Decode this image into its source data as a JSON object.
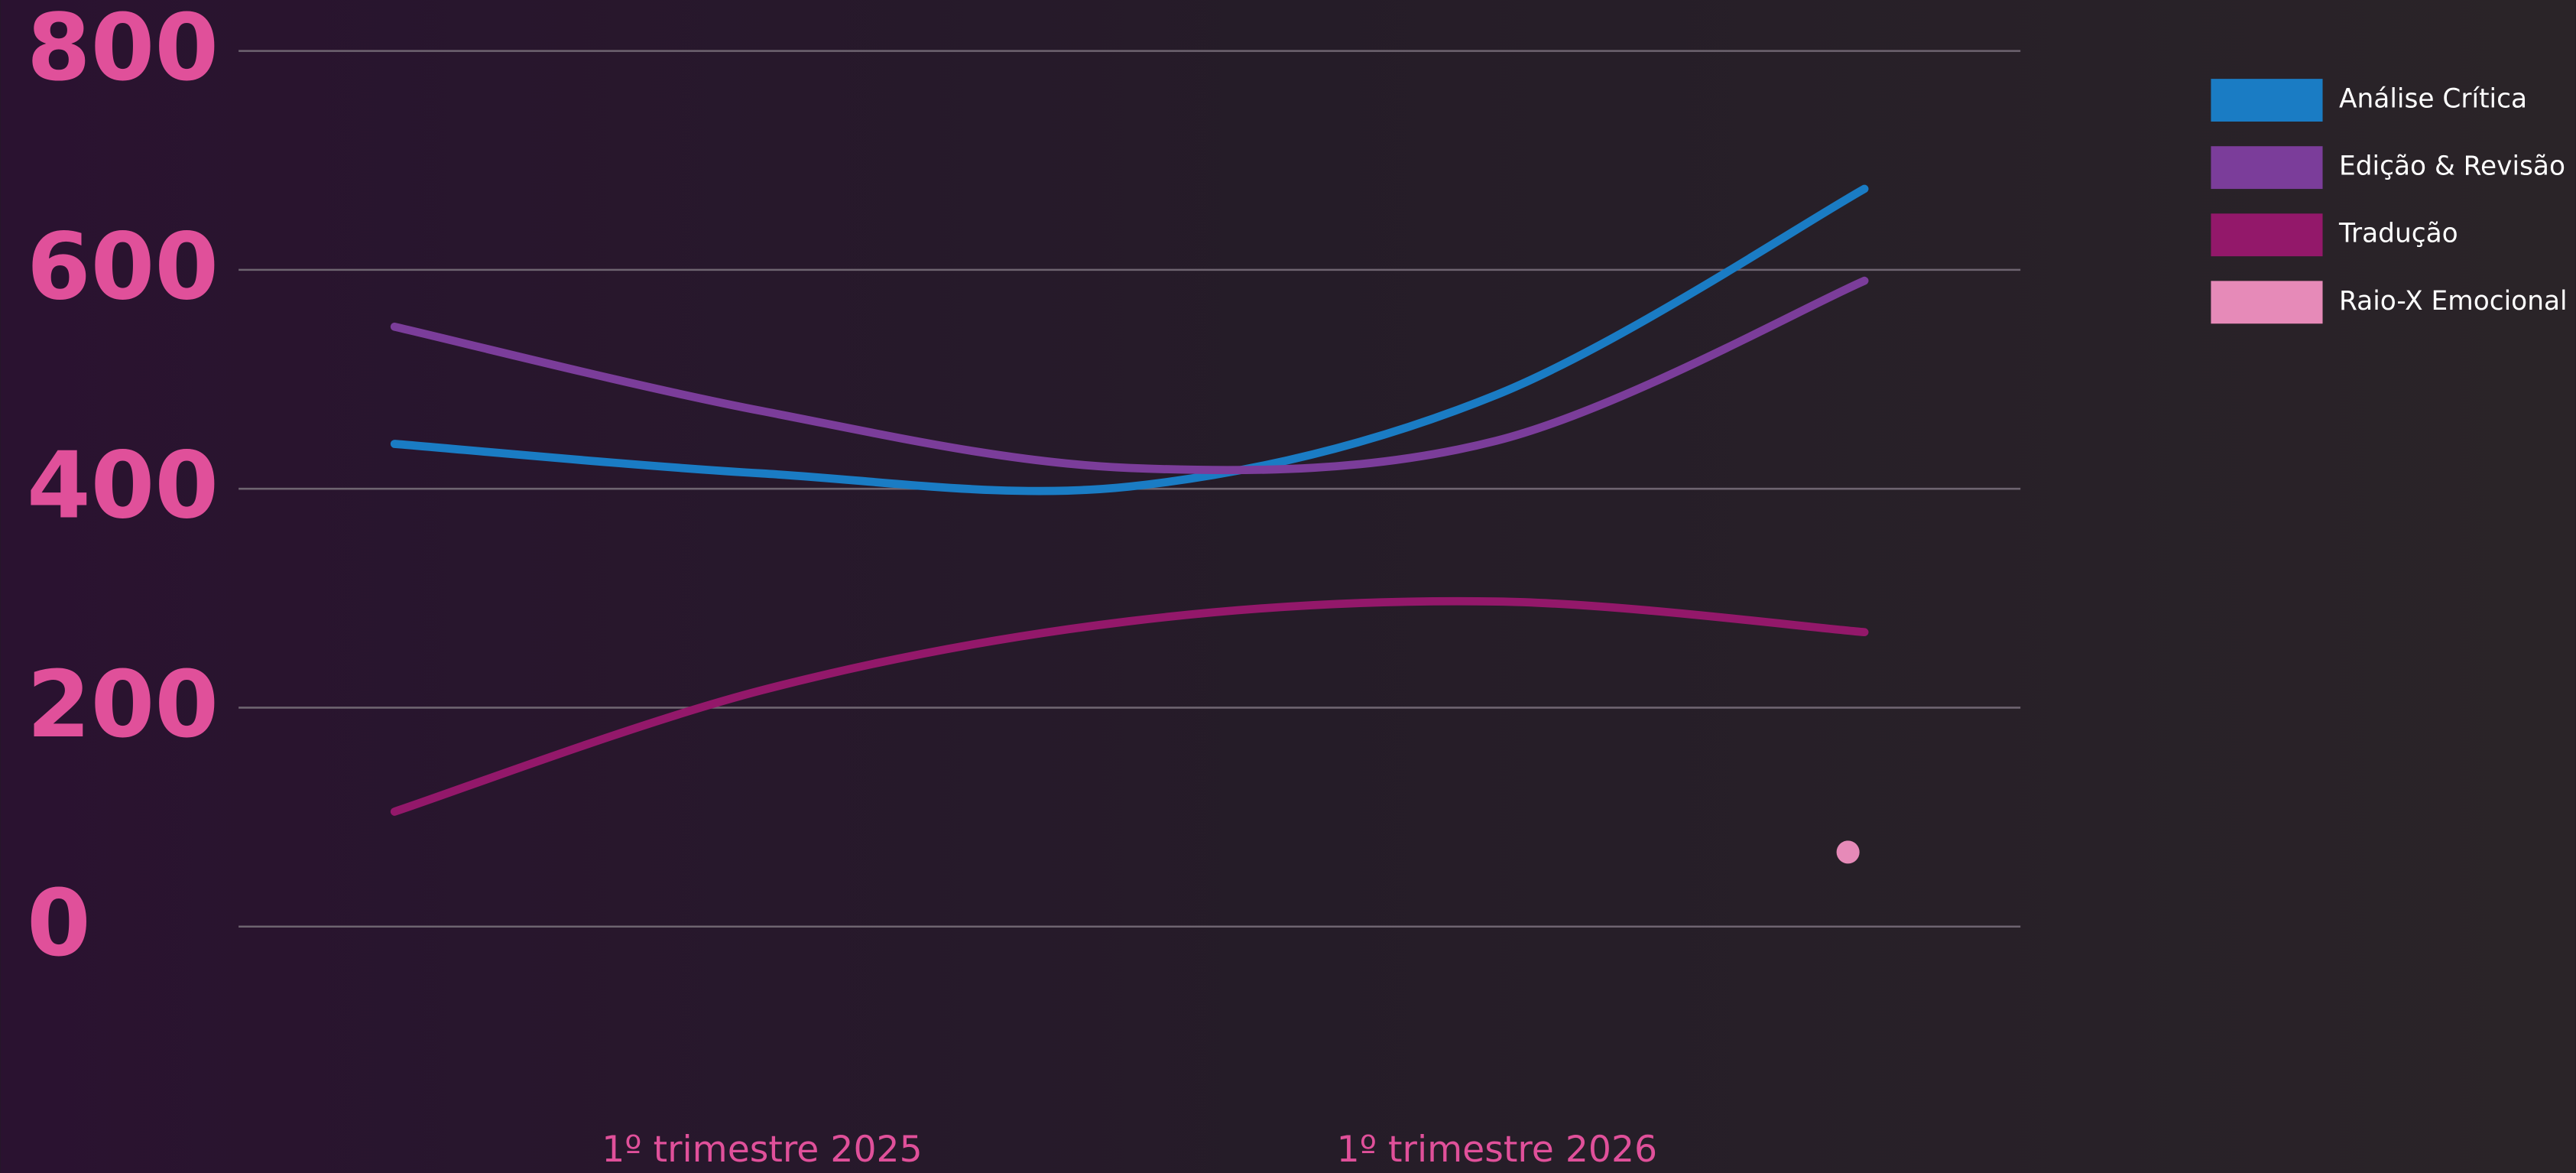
{
  "chart_data": {
    "type": "line",
    "categories": [
      null,
      "1º trimestre 2025",
      null,
      "1º trimestre 2026",
      null
    ],
    "series": [
      {
        "name": "Análise Crítica",
        "color": "#1a7cc4",
        "values": [
          441,
          414,
          402,
          486,
          674
        ]
      },
      {
        "name": "Edição & Revisão",
        "color": "#7b3d9a",
        "values": [
          548,
          471,
          419,
          444,
          590
        ]
      },
      {
        "name": "Tradução",
        "color": "#93186a",
        "values": [
          105,
          216,
          279,
          297,
          269
        ]
      },
      {
        "name": "Raio-X Emocional",
        "color": "#e68ab8",
        "values": [
          null,
          null,
          null,
          null,
          68
        ]
      }
    ],
    "ylim": [
      0,
      800
    ],
    "yticks": [
      0,
      200,
      400,
      600,
      800
    ],
    "grid": true,
    "legend": "right",
    "smooth": true
  }
}
